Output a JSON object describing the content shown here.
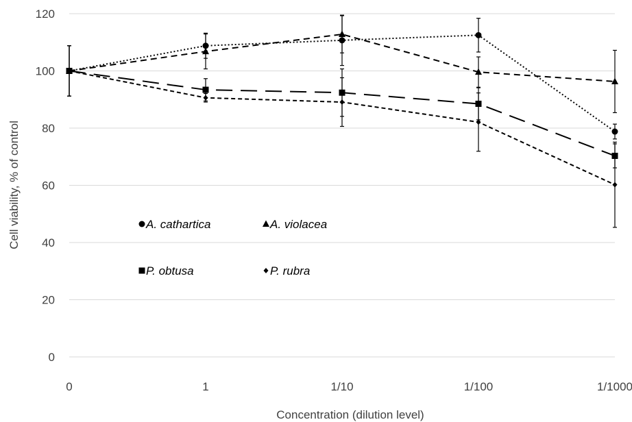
{
  "chart_data": {
    "type": "line",
    "title": "",
    "xlabel": "Concentration (dilution level)",
    "ylabel": "Cell viability, % of control",
    "categories": [
      "0",
      "1",
      "1/10",
      "1/100",
      "1/1000"
    ],
    "ylim": [
      0,
      120
    ],
    "yticks": [
      0,
      20,
      40,
      60,
      80,
      100,
      120
    ],
    "grid": "horizontal",
    "legend_position": "inside-left",
    "series": [
      {
        "name": "A. cathartica",
        "marker": "circle",
        "line_style": "dotted",
        "color": "#000000",
        "values": [
          100,
          108.8,
          110.7,
          112.5,
          78.8
        ],
        "errors": [
          8.8,
          4.4,
          8.8,
          5.9,
          2.6
        ]
      },
      {
        "name": "A. violacea",
        "marker": "triangle",
        "line_style": "dashed",
        "color": "#000000",
        "values": [
          100,
          106.8,
          112.8,
          99.6,
          96.3
        ],
        "errors": [
          8.8,
          6.1,
          6.5,
          5.3,
          10.9
        ]
      },
      {
        "name": "P. obtusa",
        "marker": "square",
        "line_style": "long-dash",
        "color": "#000000",
        "values": [
          100,
          93.4,
          92.4,
          88.5,
          70.3
        ],
        "errors": [
          8.8,
          3.9,
          8.3,
          5.6,
          4.2
        ]
      },
      {
        "name": "P. rubra",
        "marker": "diamond",
        "line_style": "short-dash",
        "color": "#000000",
        "values": [
          100,
          90.6,
          89.1,
          82.1,
          60.2
        ],
        "errors": [
          8.8,
          1.5,
          8.5,
          10.2,
          14.9
        ]
      }
    ]
  }
}
